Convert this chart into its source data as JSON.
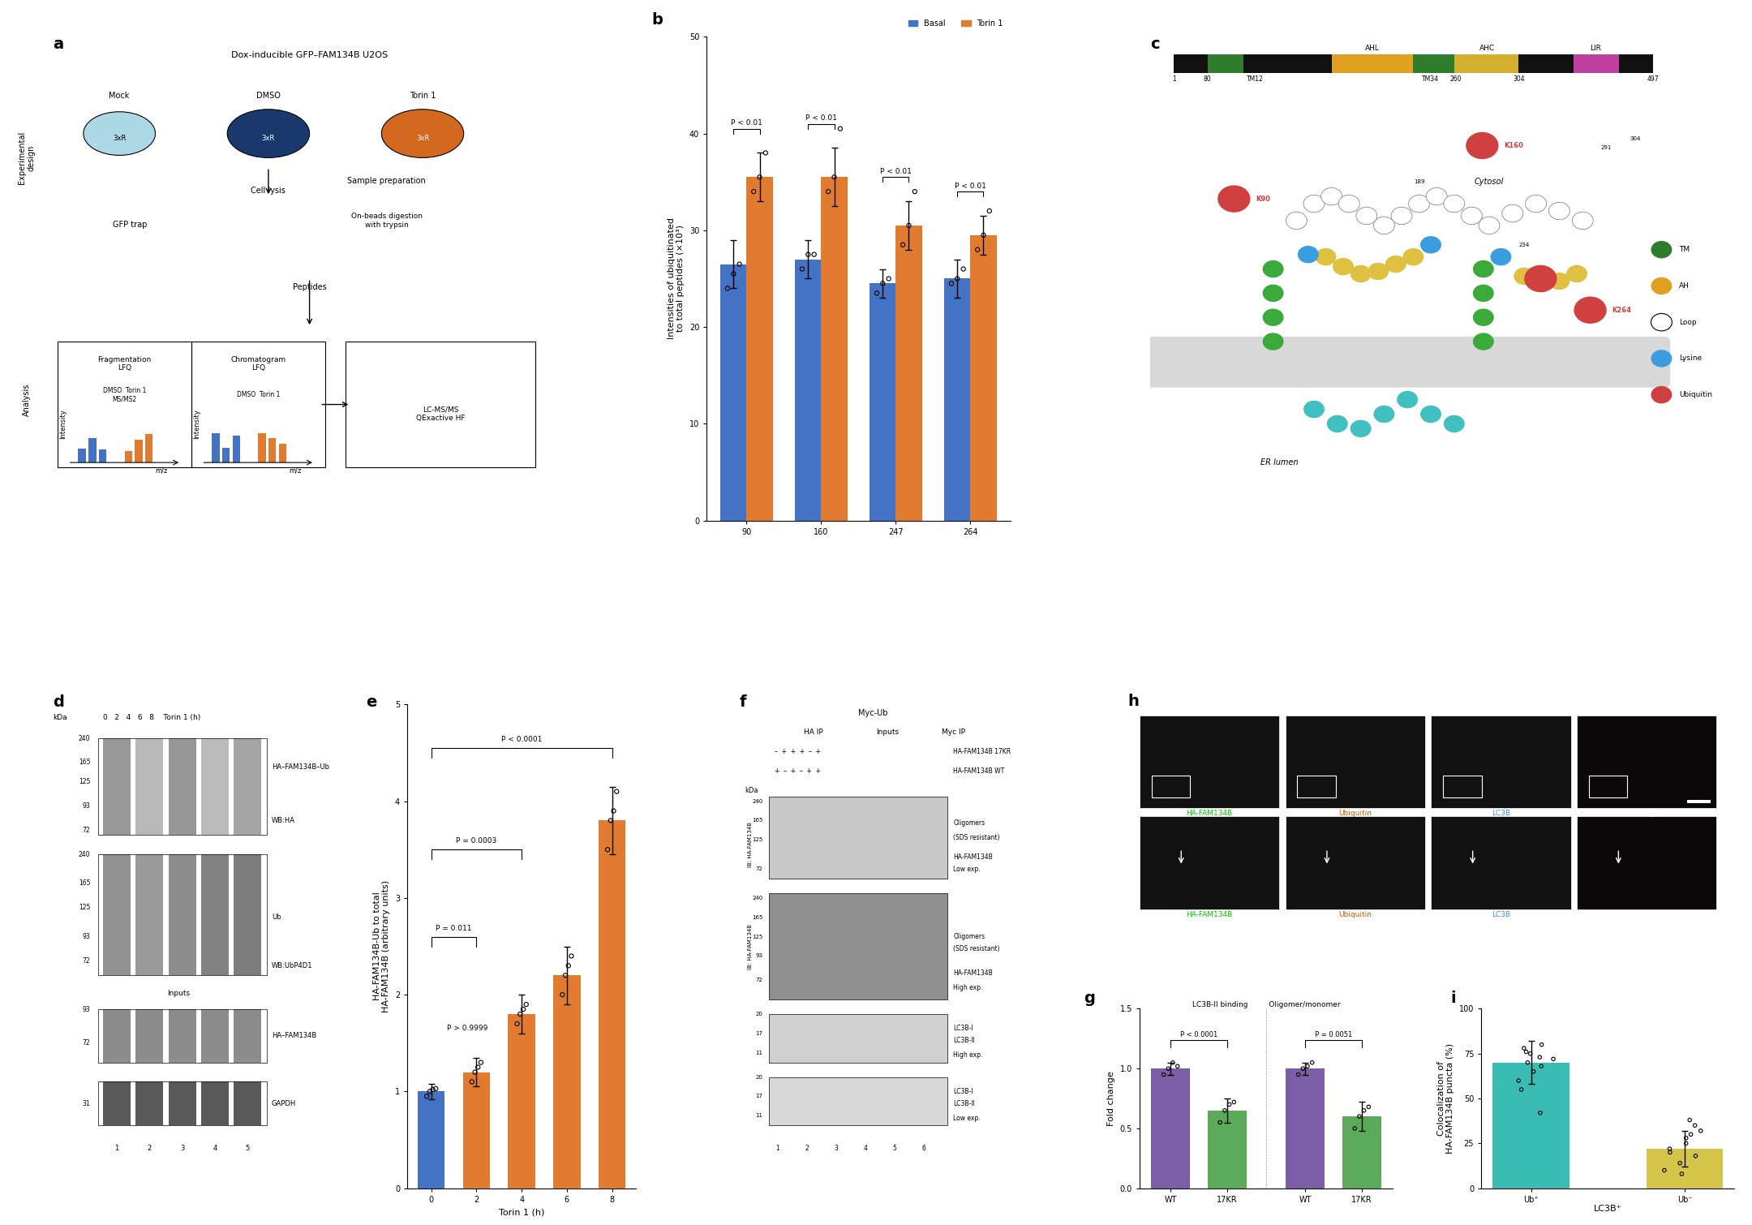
{
  "panel_b": {
    "categories": [
      "90",
      "160",
      "247",
      "264"
    ],
    "basal_means": [
      26.5,
      27.0,
      24.5,
      25.0
    ],
    "basal_errors": [
      2.5,
      2.0,
      1.5,
      2.0
    ],
    "basal_points": [
      [
        24.0,
        25.5,
        26.5
      ],
      [
        26.0,
        27.5,
        27.5
      ],
      [
        23.5,
        24.5,
        25.0
      ],
      [
        24.5,
        25.0,
        26.0
      ]
    ],
    "torin_means": [
      35.5,
      35.5,
      30.5,
      29.5
    ],
    "torin_errors": [
      2.5,
      3.0,
      2.5,
      2.0
    ],
    "torin_points": [
      [
        34.0,
        35.5,
        38.0
      ],
      [
        34.0,
        35.5,
        40.5
      ],
      [
        28.5,
        30.5,
        34.0
      ],
      [
        28.0,
        29.5,
        32.0
      ]
    ],
    "ylabel": "Intensities of ubiquitinated\nto total peptides (×10³)",
    "ylim": [
      0,
      50
    ],
    "yticks": [
      0,
      10,
      20,
      30,
      40,
      50
    ],
    "color_basal": "#4472c4",
    "color_torin": "#e07b30",
    "pvalue_text": "P < 0.01",
    "legend_basal": "Basal",
    "legend_torin": "Torin 1"
  },
  "panel_e": {
    "categories": [
      "0",
      "2",
      "4",
      "6",
      "8"
    ],
    "means": [
      1.0,
      1.2,
      1.8,
      2.2,
      3.8
    ],
    "errors": [
      0.08,
      0.15,
      0.2,
      0.3,
      0.35
    ],
    "points": [
      [
        0.95,
        1.0,
        1.02,
        1.03
      ],
      [
        1.1,
        1.2,
        1.25,
        1.3
      ],
      [
        1.7,
        1.8,
        1.85,
        1.9
      ],
      [
        2.0,
        2.2,
        2.3,
        2.4
      ],
      [
        3.5,
        3.8,
        3.9,
        4.1
      ]
    ],
    "colors": [
      "#4472c4",
      "#e07b30",
      "#e07b30",
      "#e07b30",
      "#e07b30"
    ],
    "xlabel": "Torin 1 (h)",
    "ylabel": "HA-FAM134B-Ub to total\nHA-FAM134B (arbitrary units)",
    "ylim": [
      0,
      5
    ],
    "yticks": [
      0,
      1,
      2,
      3,
      4,
      5
    ],
    "pvalues": [
      "P < 0.0001",
      "P = 0.0003",
      "P = 0.011",
      "P > 0.9999"
    ]
  },
  "panel_g": {
    "means": [
      1.0,
      0.65,
      1.0,
      0.6
    ],
    "errors": [
      0.05,
      0.1,
      0.05,
      0.12
    ],
    "points_wt_lc3b": [
      0.95,
      1.0,
      1.05,
      1.02
    ],
    "points_17kr_lc3b": [
      0.55,
      0.65,
      0.7,
      0.72
    ],
    "points_wt_oligo": [
      0.95,
      1.0,
      1.02,
      1.05
    ],
    "points_17kr_oligo": [
      0.5,
      0.6,
      0.65,
      0.68
    ],
    "color_wt": "#7b5ea7",
    "color_17kr": "#5aaa5a",
    "ylabel": "Fold change",
    "ylim": [
      0,
      1.5
    ],
    "yticks": [
      0.0,
      0.5,
      1.0,
      1.5
    ],
    "pvalue_lc3b": "P < 0.0001",
    "pvalue_oligo": "P = 0.0051"
  },
  "panel_i": {
    "categories": [
      "Ub⁺",
      "Ub⁻"
    ],
    "xlabel": "LC3B⁺",
    "means": [
      70.0,
      22.0
    ],
    "errors": [
      12.0,
      10.0
    ],
    "points_ub_pos": [
      42,
      55,
      60,
      65,
      68,
      70,
      72,
      73,
      75,
      76,
      78,
      80
    ],
    "points_ub_neg": [
      8,
      10,
      14,
      18,
      20,
      22,
      25,
      28,
      30,
      32,
      35,
      38
    ],
    "color_ub_pos": "#3abcb5",
    "color_ub_neg": "#d4c44a",
    "ylabel": "Colocalization of\nHA-FAM134B puncta (%)",
    "ylim": [
      0,
      100
    ],
    "yticks": [
      0,
      25,
      50,
      75,
      100
    ]
  },
  "figure": {
    "bg_color": "#ffffff",
    "panel_label_fontsize": 14,
    "axis_fontsize": 8,
    "tick_fontsize": 7
  }
}
